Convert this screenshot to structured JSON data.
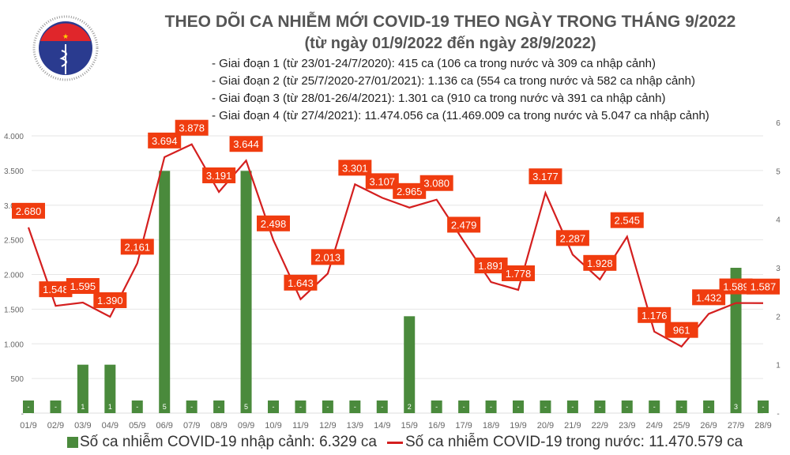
{
  "header": {
    "title": "THEO DÕI CA NHIỄM MỚI COVID-19 THEO NGÀY TRONG THÁNG 9/2022",
    "subtitle": "(từ ngày 01/9/2022 đến ngày 28/9/2022)",
    "notes": [
      "- Giai đoạn 1 (từ 23/01-24/7/2020): 415 ca (106 ca trong nước và 309 ca nhập cảnh)",
      "- Giai đoạn 2 (từ 25/7/2020-27/01/2021): 1.136 ca (554 ca trong nước và 582 ca nhập cảnh)",
      "- Giai đoạn 3 (từ 28/01-26/4/2021): 1.301 ca (910 ca trong nước và 391 ca nhập cảnh)",
      "- Giai đoạn 4 (từ 27/4/2021): 11.474.056 ca (11.469.009 ca trong nước và 5.047 ca nhập cảnh)"
    ],
    "logo": {
      "text_top": "BỘ Y TẾ",
      "text_bottom": "MINISTRY OF HEALTH"
    }
  },
  "chart_data": {
    "type": "bar+line",
    "categories": [
      "01/9",
      "02/9",
      "03/9",
      "04/9",
      "05/9",
      "06/9",
      "07/9",
      "08/9",
      "09/9",
      "10/9",
      "11/9",
      "12/9",
      "13/9",
      "14/9",
      "15/9",
      "16/9",
      "17/9",
      "18/9",
      "19/9",
      "20/9",
      "21/9",
      "22/9",
      "23/9",
      "24/9",
      "25/9",
      "26/9",
      "27/9",
      "28/9"
    ],
    "series": [
      {
        "name": "Số ca nhiễm COVID-19 nhập cảnh: 6.329 ca",
        "type": "bar",
        "axis": "right",
        "color": "#4a8a3c",
        "values": [
          0,
          0,
          1,
          1,
          0,
          5,
          0,
          0,
          5,
          0,
          0,
          0,
          0,
          0,
          2,
          0,
          0,
          0,
          0,
          0,
          0,
          0,
          0,
          0,
          0,
          0,
          3,
          0
        ]
      },
      {
        "name": "Số ca nhiễm COVID-19 trong nước: 11.470.579 ca",
        "type": "line",
        "axis": "left",
        "color": "#d41f1f",
        "label_color": "#f03c0f",
        "values": [
          2680,
          1548,
          1595,
          1390,
          2161,
          3694,
          3878,
          3191,
          3644,
          2498,
          1643,
          2013,
          3301,
          3107,
          2965,
          3080,
          2479,
          1891,
          1778,
          3177,
          2287,
          1928,
          2545,
          1176,
          961,
          1432,
          1589,
          1587
        ]
      }
    ],
    "left_axis": {
      "ylim": [
        0,
        4000
      ],
      "ticks": [
        "-",
        "500",
        "1.000",
        "1.500",
        "2.000",
        "2.500",
        "3.000",
        "3.500",
        "4.000"
      ]
    },
    "right_axis": {
      "ylim": [
        0,
        6
      ],
      "ticks": [
        "-",
        "1",
        "2",
        "3",
        "4",
        "5",
        "6"
      ]
    },
    "grid": true,
    "legend_position": "bottom"
  }
}
